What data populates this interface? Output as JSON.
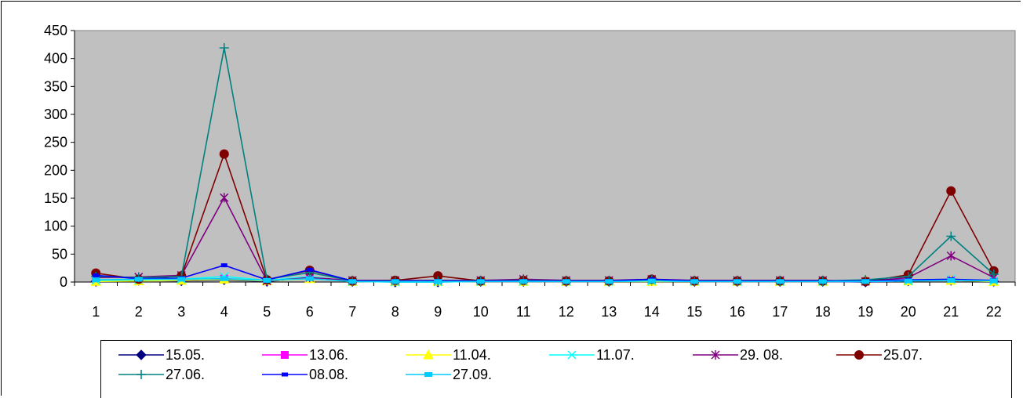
{
  "chart_data": {
    "type": "line",
    "title": "",
    "xlabel": "",
    "ylabel": "",
    "x": [
      "1",
      "2",
      "3",
      "4",
      "5",
      "6",
      "7",
      "8",
      "9",
      "10",
      "11",
      "12",
      "13",
      "14",
      "15",
      "16",
      "17",
      "18",
      "19",
      "20",
      "21",
      "22"
    ],
    "ylim": [
      0,
      450
    ],
    "yticks": [
      "0",
      "50",
      "100",
      "150",
      "200",
      "250",
      "300",
      "350",
      "400",
      "450"
    ],
    "grid": false,
    "plot_background": "#c0c0c0",
    "legend_position": "bottom",
    "series": [
      {
        "name": "15.05.",
        "color": "#000080",
        "marker": "diamond",
        "values": [
          1,
          3,
          2,
          4,
          1,
          8,
          1,
          0,
          0,
          1,
          1,
          1,
          1,
          2,
          1,
          1,
          1,
          1,
          0,
          2,
          3,
          1
        ]
      },
      {
        "name": "13.06.",
        "color": "#ff00ff",
        "marker": "square",
        "values": [
          2,
          3,
          3,
          6,
          2,
          8,
          1,
          1,
          1,
          1,
          1,
          1,
          1,
          2,
          1,
          1,
          1,
          1,
          1,
          2,
          4,
          2
        ]
      },
      {
        "name": "11.04.",
        "color": "#ffff00",
        "marker": "triangle",
        "values": [
          1,
          2,
          3,
          5,
          2,
          6,
          1,
          1,
          1,
          1,
          1,
          1,
          1,
          1,
          1,
          1,
          1,
          1,
          3,
          2,
          3,
          1
        ]
      },
      {
        "name": "11.07.",
        "color": "#00ffff",
        "marker": "x",
        "values": [
          3,
          4,
          5,
          10,
          3,
          10,
          1,
          0,
          0,
          1,
          1,
          1,
          1,
          2,
          1,
          1,
          1,
          1,
          1,
          2,
          5,
          2
        ]
      },
      {
        "name": "29. 08.",
        "color": "#800080",
        "marker": "star",
        "values": [
          8,
          9,
          12,
          151,
          2,
          8,
          3,
          3,
          3,
          3,
          5,
          3,
          3,
          5,
          3,
          3,
          3,
          3,
          1,
          8,
          47,
          8
        ]
      },
      {
        "name": "25.07.",
        "color": "#800000",
        "marker": "circle",
        "values": [
          16,
          5,
          11,
          229,
          4,
          21,
          2,
          3,
          11,
          2,
          3,
          2,
          2,
          5,
          2,
          2,
          2,
          2,
          1,
          13,
          163,
          20
        ]
      },
      {
        "name": "27.06.",
        "color": "#008080",
        "marker": "plus",
        "values": [
          10,
          8,
          10,
          419,
          5,
          17,
          2,
          2,
          2,
          2,
          3,
          2,
          2,
          4,
          2,
          2,
          2,
          2,
          4,
          10,
          82,
          14
        ]
      },
      {
        "name": "08.08.",
        "color": "#0000ff",
        "marker": "dash",
        "values": [
          12,
          6,
          7,
          30,
          4,
          22,
          2,
          2,
          2,
          2,
          2,
          2,
          2,
          5,
          2,
          2,
          2,
          2,
          2,
          4,
          5,
          3
        ]
      },
      {
        "name": "27.09.",
        "color": "#00ccff",
        "marker": "bar",
        "values": [
          4,
          5,
          5,
          6,
          3,
          6,
          1,
          1,
          1,
          1,
          1,
          1,
          1,
          2,
          1,
          1,
          1,
          1,
          1,
          2,
          3,
          2
        ]
      }
    ]
  }
}
